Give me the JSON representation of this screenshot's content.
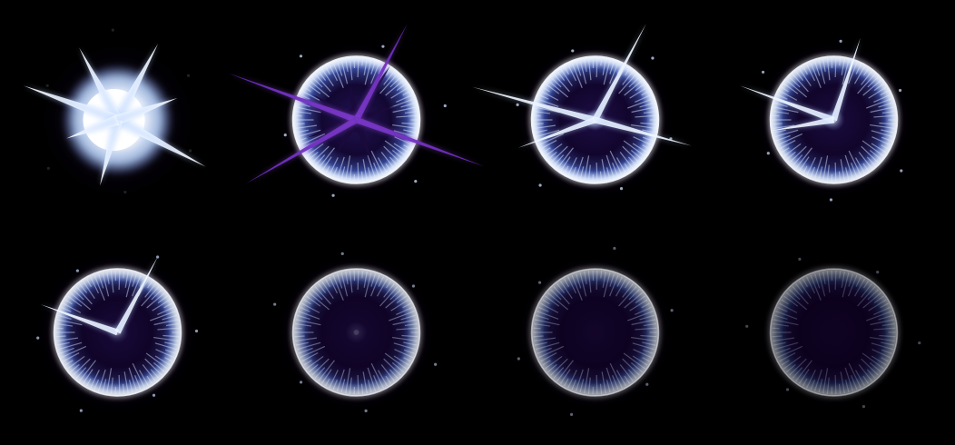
{
  "sprite_sheet": {
    "description_icon": "energy-burst-sprite-sheet",
    "background_color": "#000000",
    "columns": 4,
    "rows": 2,
    "colors": {
      "core_white": "#ffffff",
      "glow_blue": "#9fc8ff",
      "ring_blue": "#c9dcff",
      "inner_dark": "#10082a",
      "purple": "#5a1f9e",
      "purple_light": "#8a4ad6",
      "haze": "#2a1250"
    },
    "frames": [
      {
        "index": 1,
        "phase": "flash",
        "ring_opacity": 0.0,
        "spike_count": 7,
        "dark_crack": false,
        "core_flash": 1.0,
        "inner_darkness": 0.0,
        "haze": 0.2
      },
      {
        "index": 2,
        "phase": "crack",
        "ring_opacity": 0.95,
        "spike_count": 4,
        "dark_crack": true,
        "core_flash": 0.0,
        "inner_darkness": 0.3,
        "haze": 0.4
      },
      {
        "index": 3,
        "phase": "burst",
        "ring_opacity": 0.95,
        "spike_count": 4,
        "dark_crack": false,
        "core_flash": 0.7,
        "inner_darkness": 0.55,
        "haze": 0.45
      },
      {
        "index": 4,
        "phase": "burst-fade",
        "ring_opacity": 0.9,
        "spike_count": 3,
        "dark_crack": false,
        "core_flash": 0.5,
        "inner_darkness": 0.65,
        "haze": 0.45
      },
      {
        "index": 5,
        "phase": "ring",
        "ring_opacity": 0.85,
        "spike_count": 2,
        "dark_crack": false,
        "core_flash": 0.25,
        "inner_darkness": 0.75,
        "haze": 0.5
      },
      {
        "index": 6,
        "phase": "ring-fade",
        "ring_opacity": 0.7,
        "spike_count": 0,
        "dark_crack": false,
        "core_flash": 0.12,
        "inner_darkness": 0.8,
        "haze": 0.4
      },
      {
        "index": 7,
        "phase": "dissipate",
        "ring_opacity": 0.55,
        "spike_count": 0,
        "dark_crack": false,
        "core_flash": 0.0,
        "inner_darkness": 0.85,
        "haze": 0.25
      },
      {
        "index": 8,
        "phase": "dissipate-end",
        "ring_opacity": 0.4,
        "spike_count": 0,
        "dark_crack": false,
        "core_flash": 0.0,
        "inner_darkness": 0.9,
        "haze": 0.15
      }
    ]
  }
}
